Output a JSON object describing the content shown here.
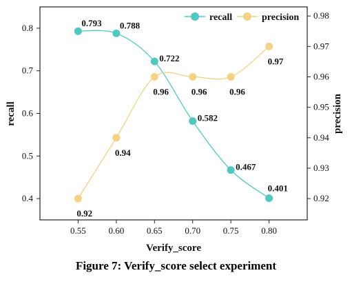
{
  "caption": "Figure 7: Verify_score select experiment",
  "chart_data": {
    "type": "line",
    "xlabel": "Verify_score",
    "ylabel_left": "recall",
    "ylabel_right": "precision",
    "x": [
      0.55,
      0.6,
      0.65,
      0.7,
      0.75,
      0.8
    ],
    "x_tick_labels": [
      "0.55",
      "0.60",
      "0.65",
      "0.70",
      "0.75",
      "0.80"
    ],
    "xlim": [
      0.5,
      0.85
    ],
    "ylim_left": [
      0.35,
      0.85
    ],
    "ylim_right": [
      0.913,
      0.983
    ],
    "y_left_ticks": [
      0.4,
      0.5,
      0.6,
      0.7,
      0.8
    ],
    "y_left_tick_labels": [
      "0.4",
      "0.5",
      "0.6",
      "0.7",
      "0.8"
    ],
    "y_right_ticks": [
      0.92,
      0.93,
      0.94,
      0.95,
      0.96,
      0.97,
      0.98
    ],
    "y_right_tick_labels": [
      "0.92",
      "0.93",
      "0.94",
      "0.95",
      "0.96",
      "0.97",
      "0.98"
    ],
    "grid": false,
    "legend_position": "top-right",
    "series": [
      {
        "name": "recall",
        "axis": "left",
        "color": "#4ec9c0",
        "values": [
          0.793,
          0.788,
          0.722,
          0.582,
          0.467,
          0.401
        ],
        "labels": [
          "0.793",
          "0.788",
          "0.722",
          "0.582",
          "0.467",
          "0.401"
        ]
      },
      {
        "name": "precision",
        "axis": "right",
        "color": "#f3d283",
        "values": [
          0.92,
          0.94,
          0.96,
          0.96,
          0.96,
          0.97
        ],
        "labels": [
          "0.92",
          "0.94",
          "0.96",
          "0.96",
          "0.96",
          "0.97"
        ]
      }
    ]
  }
}
